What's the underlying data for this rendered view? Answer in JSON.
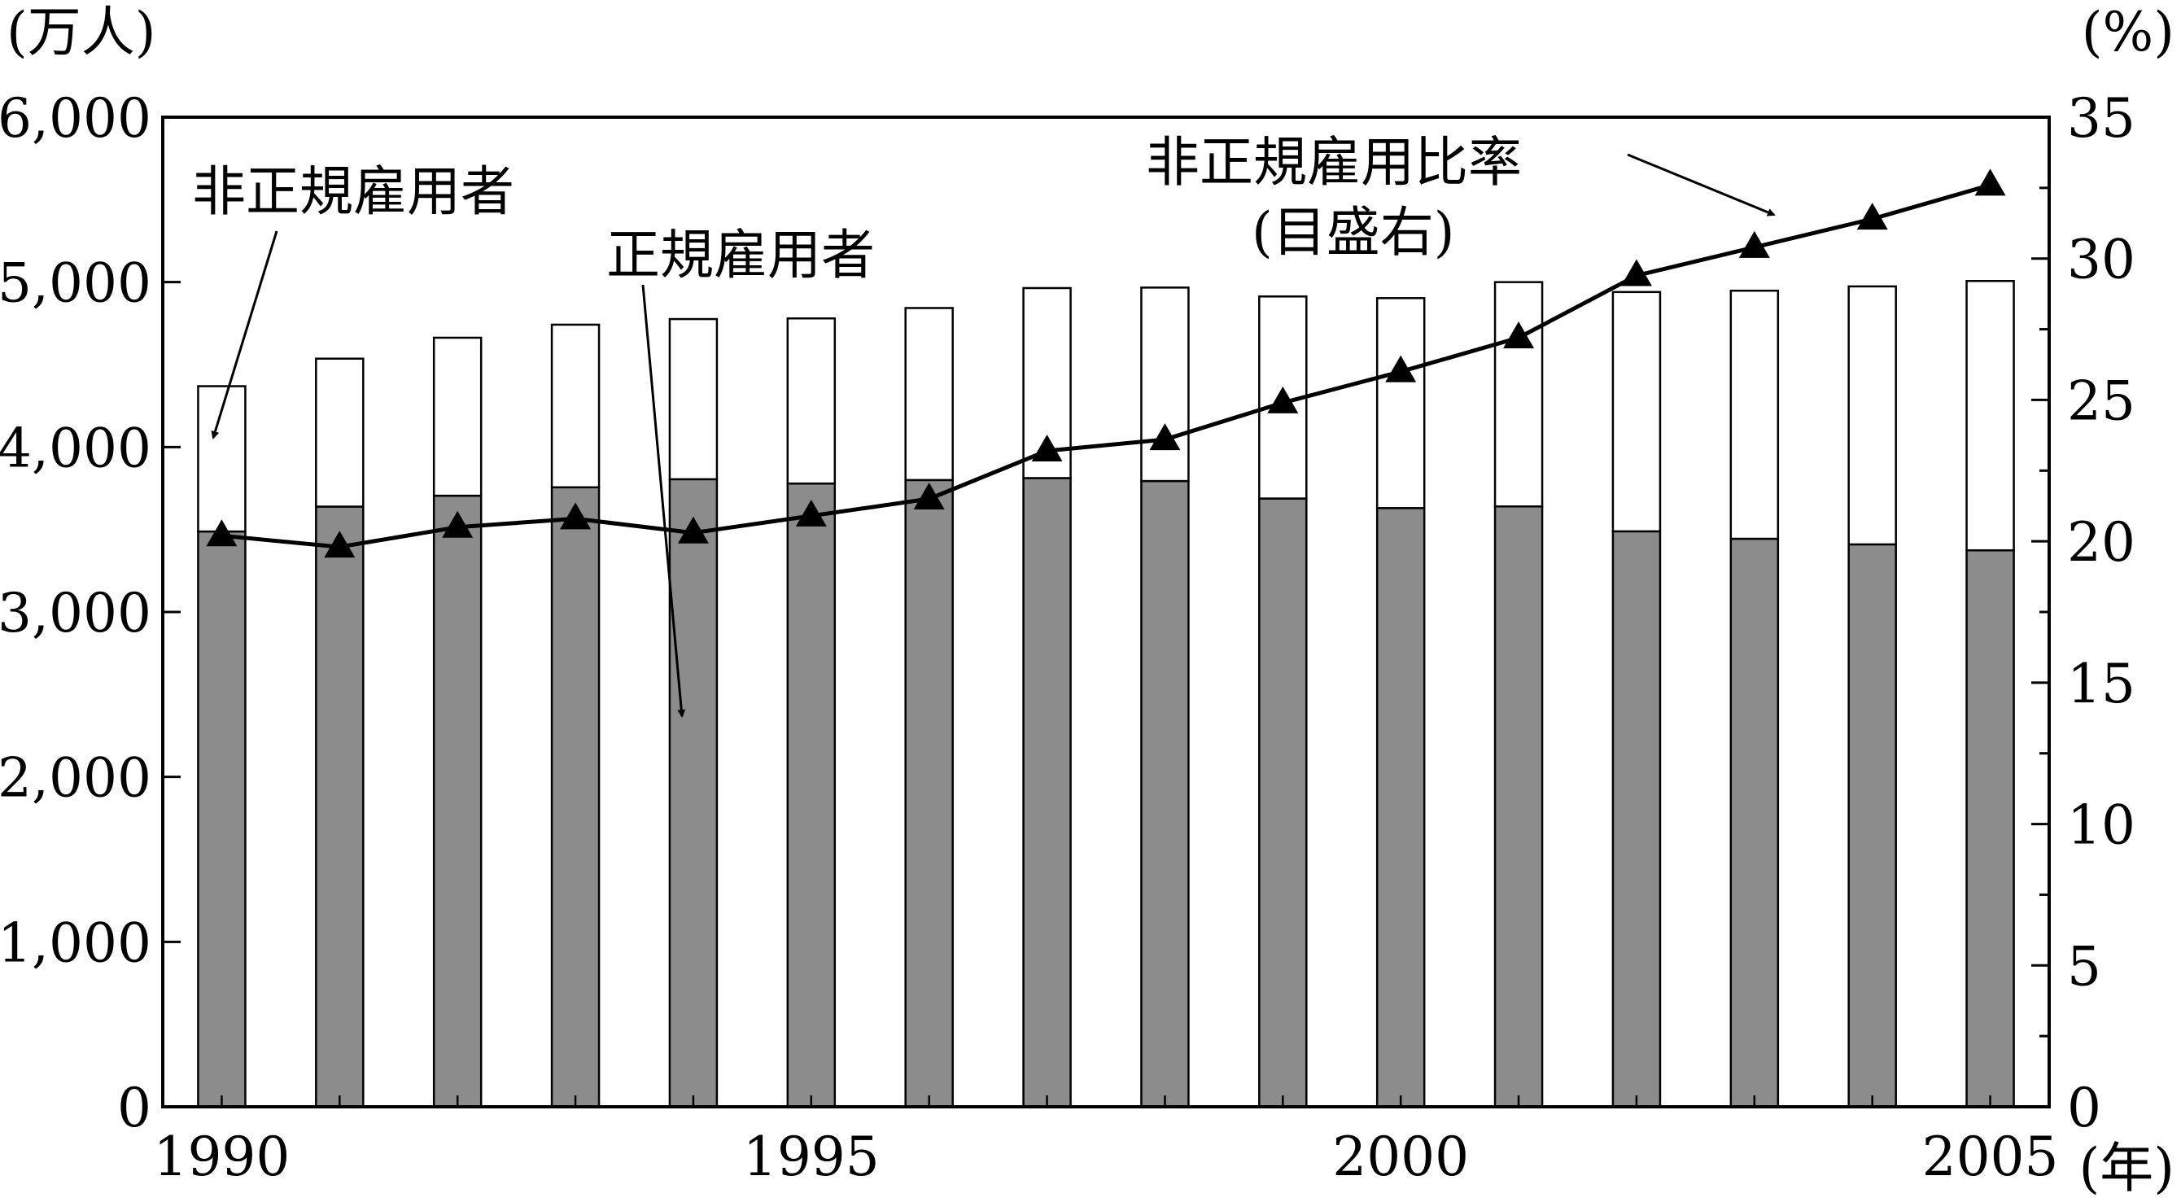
{
  "chart_data": {
    "type": "bar",
    "stacked": true,
    "title": "",
    "x": [
      1990,
      1991,
      1992,
      1993,
      1994,
      1995,
      1996,
      1997,
      1998,
      1999,
      2000,
      2001,
      2002,
      2003,
      2004,
      2005
    ],
    "x_tick_labels": [
      "1990",
      "1995",
      "2000",
      "2005"
    ],
    "x_tick_values": [
      1990,
      1995,
      2000,
      2005
    ],
    "xlabel": "(年)",
    "ylabel_left": "(万人)",
    "ylabel_right": "(%)",
    "ylim_left": [
      0,
      6000
    ],
    "ylim_right": [
      0,
      35
    ],
    "y_left_ticks": [
      0,
      1000,
      2000,
      3000,
      4000,
      5000,
      6000
    ],
    "y_left_tick_labels": [
      "0",
      "1,000",
      "2,000",
      "3,000",
      "4,000",
      "5,000",
      "6,000"
    ],
    "y_right_ticks": [
      0,
      5,
      10,
      15,
      20,
      25,
      30,
      35
    ],
    "y_right_tick_labels": [
      "0",
      "5",
      "10",
      "15",
      "20",
      "25",
      "30",
      "35"
    ],
    "series": [
      {
        "name": "正規雇用者",
        "kind": "bar",
        "axis": "left",
        "color": "#8c8c8c",
        "values": [
          3488,
          3639,
          3705,
          3756,
          3805,
          3779,
          3800,
          3812,
          3794,
          3688,
          3630,
          3640,
          3489,
          3444,
          3410,
          3374
        ]
      },
      {
        "name": "非正規雇用者",
        "kind": "bar",
        "axis": "left",
        "color": "#ffffff",
        "values": [
          881,
          897,
          958,
          986,
          971,
          1001,
          1043,
          1152,
          1173,
          1225,
          1273,
          1360,
          1451,
          1504,
          1564,
          1633
        ]
      },
      {
        "name": "非正規雇用比率",
        "kind": "line",
        "axis": "right",
        "color": "#000000",
        "marker": "triangle",
        "values": [
          20.2,
          19.8,
          20.5,
          20.8,
          20.3,
          20.9,
          21.5,
          23.2,
          23.6,
          24.9,
          26.0,
          27.2,
          29.4,
          30.4,
          31.4,
          32.6
        ]
      }
    ],
    "annotations": [
      {
        "text": "非正規雇用者",
        "points_to": "非正規雇用者"
      },
      {
        "text": "正規雇用者",
        "points_to": "正規雇用者"
      },
      {
        "text": "非正規雇用比率",
        "points_to": "非正規雇用比率"
      },
      {
        "text": "(目盛右)",
        "points_to": "非正規雇用比率"
      }
    ],
    "grid": false,
    "legend": "none"
  }
}
